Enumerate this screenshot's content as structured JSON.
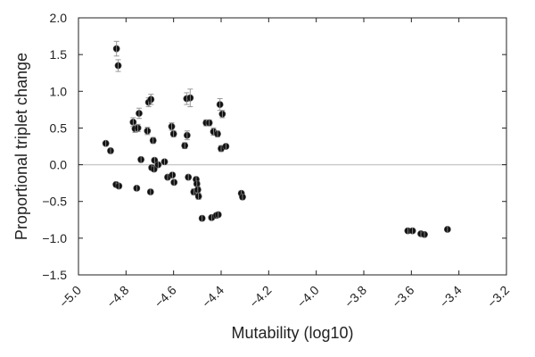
{
  "chart_data": {
    "type": "scatter",
    "title": "",
    "xlabel": "Mutability (log10)",
    "ylabel": "Proportional triplet change",
    "xlim": [
      -5.0,
      -3.2
    ],
    "ylim": [
      -1.5,
      2.0
    ],
    "xticks": [
      -5.0,
      -4.8,
      -4.6,
      -4.4,
      -4.2,
      -4.0,
      -3.8,
      -3.6,
      -3.4,
      -3.2
    ],
    "xtick_labels": [
      "−5.0",
      "−4.8",
      "−4.6",
      "−4.4",
      "−4.2",
      "−4.0",
      "−3.8",
      "−3.6",
      "−3.4",
      "−3.2"
    ],
    "yticks": [
      -1.5,
      -1.0,
      -0.5,
      0.0,
      0.5,
      1.0,
      1.5,
      2.0
    ],
    "ytick_labels": [
      "−1.5",
      "−1.0",
      "−0.5",
      "0.0",
      "0.5",
      "1.0",
      "1.5",
      "2.0"
    ],
    "reference_line_y": 0.0,
    "grid": false,
    "legend": "none",
    "colors": {
      "point": "#111111",
      "errorbar": "#999999",
      "reference_line": "#c8c8c8",
      "axes": "#222222"
    },
    "points": [
      {
        "x": -4.885,
        "y": 0.29,
        "err": 0.03
      },
      {
        "x": -4.865,
        "y": 0.19,
        "err": 0.03
      },
      {
        "x": -4.84,
        "y": 1.58,
        "err": 0.1
      },
      {
        "x": -4.833,
        "y": 1.35,
        "err": 0.08
      },
      {
        "x": -4.842,
        "y": -0.27,
        "err": 0.03
      },
      {
        "x": -4.83,
        "y": -0.29,
        "err": 0.03
      },
      {
        "x": -4.77,
        "y": 0.58,
        "err": 0.06
      },
      {
        "x": -4.762,
        "y": 0.49,
        "err": 0.05
      },
      {
        "x": -4.75,
        "y": 0.5,
        "err": 0.05
      },
      {
        "x": -4.755,
        "y": -0.32,
        "err": 0.03
      },
      {
        "x": -4.745,
        "y": 0.7,
        "err": 0.07
      },
      {
        "x": -4.737,
        "y": 0.07,
        "err": 0.03
      },
      {
        "x": -4.71,
        "y": 0.46,
        "err": 0.05
      },
      {
        "x": -4.705,
        "y": 0.85,
        "err": 0.06
      },
      {
        "x": -4.695,
        "y": 0.89,
        "err": 0.07
      },
      {
        "x": -4.692,
        "y": -0.04,
        "err": 0.03
      },
      {
        "x": -4.686,
        "y": 0.33,
        "err": 0.04
      },
      {
        "x": -4.68,
        "y": 0.06,
        "err": 0.03
      },
      {
        "x": -4.682,
        "y": -0.06,
        "err": 0.03
      },
      {
        "x": -4.697,
        "y": -0.37,
        "err": 0.03
      },
      {
        "x": -4.665,
        "y": 0.0,
        "err": 0.03
      },
      {
        "x": -4.638,
        "y": 0.04,
        "err": 0.03
      },
      {
        "x": -4.625,
        "y": -0.17,
        "err": 0.03
      },
      {
        "x": -4.608,
        "y": 0.52,
        "err": 0.05
      },
      {
        "x": -4.6,
        "y": 0.42,
        "err": 0.04
      },
      {
        "x": -4.605,
        "y": -0.14,
        "err": 0.03
      },
      {
        "x": -4.598,
        "y": -0.24,
        "err": 0.03
      },
      {
        "x": -4.553,
        "y": 0.26,
        "err": 0.04
      },
      {
        "x": -4.545,
        "y": 0.9,
        "err": 0.08
      },
      {
        "x": -4.543,
        "y": 0.4,
        "err": 0.06
      },
      {
        "x": -4.538,
        "y": -0.17,
        "err": 0.03
      },
      {
        "x": -4.53,
        "y": 0.91,
        "err": 0.12
      },
      {
        "x": -4.515,
        "y": -0.37,
        "err": 0.04
      },
      {
        "x": -4.505,
        "y": -0.2,
        "err": 0.03
      },
      {
        "x": -4.502,
        "y": -0.26,
        "err": 0.03
      },
      {
        "x": -4.498,
        "y": -0.34,
        "err": 0.04
      },
      {
        "x": -4.495,
        "y": -0.43,
        "err": 0.04
      },
      {
        "x": -4.48,
        "y": -0.73,
        "err": 0.03
      },
      {
        "x": -4.463,
        "y": 0.57,
        "err": 0.04
      },
      {
        "x": -4.45,
        "y": 0.57,
        "err": 0.04
      },
      {
        "x": -4.44,
        "y": -0.72,
        "err": 0.03
      },
      {
        "x": -4.432,
        "y": 0.45,
        "err": 0.05
      },
      {
        "x": -4.42,
        "y": -0.69,
        "err": 0.03
      },
      {
        "x": -4.412,
        "y": -0.68,
        "err": 0.03
      },
      {
        "x": -4.415,
        "y": 0.42,
        "err": 0.04
      },
      {
        "x": -4.405,
        "y": 0.82,
        "err": 0.08
      },
      {
        "x": -4.395,
        "y": 0.69,
        "err": 0.05
      },
      {
        "x": -4.4,
        "y": 0.22,
        "err": 0.04
      },
      {
        "x": -4.38,
        "y": 0.25,
        "err": 0.03
      },
      {
        "x": -4.315,
        "y": -0.39,
        "err": 0.03
      },
      {
        "x": -4.31,
        "y": -0.44,
        "err": 0.03
      },
      {
        "x": -3.615,
        "y": -0.9,
        "err": 0.02
      },
      {
        "x": -3.595,
        "y": -0.9,
        "err": 0.02
      },
      {
        "x": -3.56,
        "y": -0.94,
        "err": 0.02
      },
      {
        "x": -3.545,
        "y": -0.95,
        "err": 0.02
      },
      {
        "x": -3.448,
        "y": -0.88,
        "err": 0.02
      }
    ]
  }
}
